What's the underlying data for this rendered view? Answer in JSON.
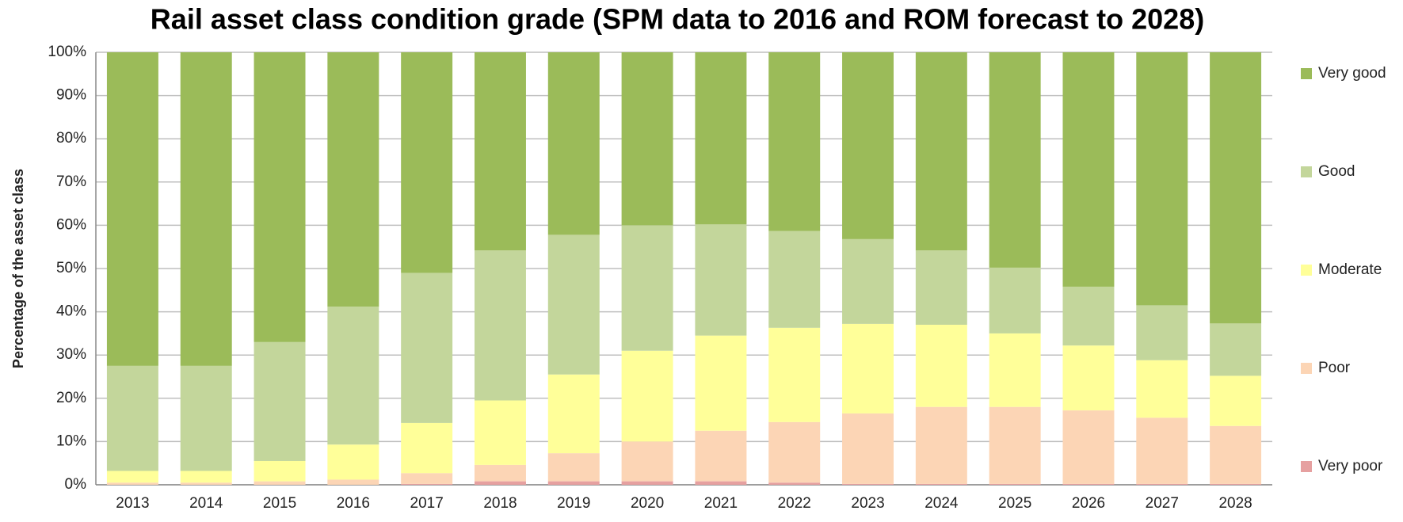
{
  "chart_data": {
    "type": "stacked_bar",
    "title": "Rail asset class condition grade (SPM data to 2016 and ROM forecast to 2028)",
    "y_label": "Percentage of the asset class",
    "categories": [
      "2013",
      "2014",
      "2015",
      "2016",
      "2017",
      "2018",
      "2019",
      "2020",
      "2021",
      "2022",
      "2023",
      "2024",
      "2025",
      "2026",
      "2027",
      "2028"
    ],
    "series": [
      {
        "name": "Very poor",
        "color": "#e6a0a0",
        "values": [
          0,
          0,
          0,
          0,
          0.2,
          0.8,
          0.8,
          0.8,
          0.8,
          0.5,
          0.2,
          0.2,
          0.2,
          0.2,
          0.2,
          0.2
        ]
      },
      {
        "name": "Poor",
        "color": "#fcd5b5",
        "values": [
          0.5,
          0.5,
          0.8,
          1.2,
          2.5,
          3.8,
          6.5,
          9.2,
          11.7,
          14,
          16.3,
          17.8,
          17.8,
          17,
          15.3,
          13.4
        ]
      },
      {
        "name": "Moderate",
        "color": "#ffff99",
        "values": [
          2.7,
          2.7,
          4.7,
          8.1,
          11.6,
          14.9,
          18.2,
          21,
          22,
          21.8,
          20.7,
          19,
          17,
          15,
          13.3,
          11.6
        ]
      },
      {
        "name": "Good",
        "color": "#c3d69b",
        "values": [
          24.3,
          24.3,
          27.5,
          31.9,
          34.7,
          34.7,
          32.3,
          29,
          25.7,
          22.4,
          19.6,
          17.2,
          15.2,
          13.6,
          12.7,
          12.1
        ]
      },
      {
        "name": "Very good",
        "color": "#9bbb59",
        "values": [
          72.5,
          72.5,
          67,
          58.8,
          51,
          45.8,
          42.2,
          40,
          39.8,
          41.3,
          43.2,
          45.8,
          49.8,
          54.2,
          58.5,
          62.7
        ]
      }
    ],
    "ylim": [
      0,
      100
    ],
    "yticks": [
      {
        "value": 0,
        "label": "0%"
      },
      {
        "value": 10,
        "label": "10%"
      },
      {
        "value": 20,
        "label": "20%"
      },
      {
        "value": 30,
        "label": "30%"
      },
      {
        "value": 40,
        "label": "40%"
      },
      {
        "value": 50,
        "label": "50%"
      },
      {
        "value": 60,
        "label": "60%"
      },
      {
        "value": 70,
        "label": "70%"
      },
      {
        "value": 80,
        "label": "80%"
      },
      {
        "value": 90,
        "label": "90%"
      },
      {
        "value": 100,
        "label": "100%"
      }
    ],
    "grid": true,
    "legend": "right"
  }
}
